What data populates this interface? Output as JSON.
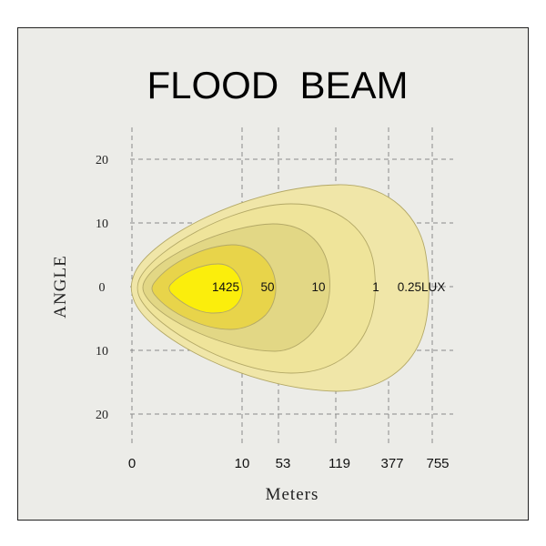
{
  "chart_data": {
    "type": "area",
    "title": "FLOOD  BEAM",
    "xlabel": "Meters",
    "ylabel": "ANGLE",
    "x_ticks": [
      "0",
      "10",
      "53",
      "119",
      "377",
      "755"
    ],
    "y_ticks": [
      "20",
      "10",
      "0",
      "10",
      "20"
    ],
    "grid": true,
    "contours": [
      {
        "label": "0.25LUX",
        "color": "#f0e6a8"
      },
      {
        "label": "1",
        "color": "#efe49a"
      },
      {
        "label": "10",
        "color": "#e2d785"
      },
      {
        "label": "50",
        "color": "#e8d44a"
      },
      {
        "label": "1425",
        "color": "#fbee0c"
      }
    ]
  }
}
